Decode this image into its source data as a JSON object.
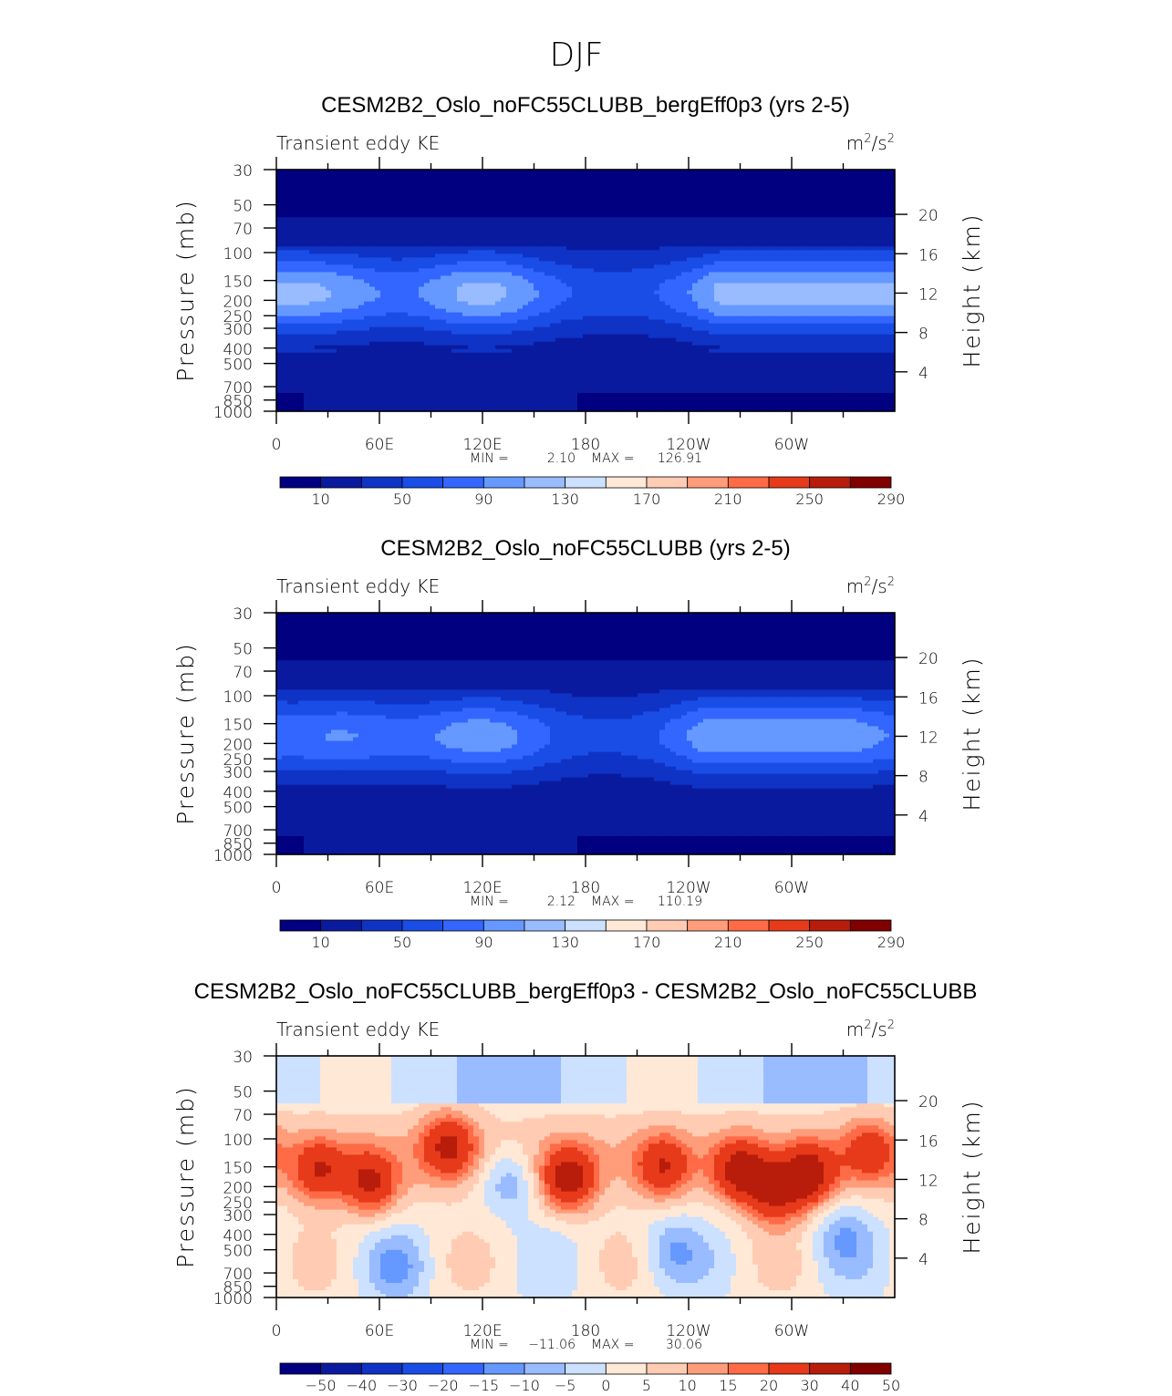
{
  "figure": {
    "title": "DJF",
    "colors": {
      "abs_scale": [
        "#000080",
        "#0a1a9e",
        "#0f33c4",
        "#1a4de6",
        "#3366ff",
        "#6699ff",
        "#99bbff",
        "#cce0ff",
        "#ffe8d6",
        "#ffccb3",
        "#ff9c7a",
        "#ff6b47",
        "#e63a1a",
        "#b81c0a",
        "#800000"
      ],
      "diff_scale": [
        "#000080",
        "#0a1a9e",
        "#0f33c4",
        "#1a4de6",
        "#3366ff",
        "#6699ff",
        "#99bbff",
        "#cce0ff",
        "#ffe8d6",
        "#ffccb3",
        "#ff9c7a",
        "#ff6b47",
        "#e63a1a",
        "#b81c0a",
        "#800000"
      ]
    }
  },
  "chart_data": [
    {
      "type": "heatmap",
      "title": "CESM2B2_Oslo_noFC55CLUBB_bergEff0p3 (yrs 2-5)",
      "subtitle_left": "Transient eddy KE",
      "units_base": "m",
      "units_exp": "2",
      "units_mid": "/s",
      "units_exp2": "2",
      "ylabel": "Pressure (mb)",
      "ylabel_right": "Height (km)",
      "x_ticks": [
        "0",
        "60E",
        "120E",
        "180",
        "120W",
        "60W"
      ],
      "y_ticks": [
        "30",
        "50",
        "70",
        "100",
        "150",
        "200",
        "250",
        "300",
        "400",
        "500",
        "700",
        "850",
        "1000"
      ],
      "y_ticks_right": [
        "20",
        "16",
        "12",
        "8",
        "4"
      ],
      "min_label": "MIN =",
      "min_value": "2.10",
      "max_label": "MAX =",
      "max_value": "126.91",
      "colorbar_labels": [
        "10",
        "50",
        "90",
        "130",
        "170",
        "210",
        "250",
        "290"
      ],
      "jet": {
        "base": 12,
        "peak": 126.91,
        "low_base": 2.1,
        "lon_peaks": [
          30,
          120,
          270,
          300,
          340
        ],
        "pressure_core_mb": 180
      }
    },
    {
      "type": "heatmap",
      "title": "CESM2B2_Oslo_noFC55CLUBB (yrs 2-5)",
      "subtitle_left": "Transient eddy KE",
      "units_base": "m",
      "units_exp": "2",
      "units_mid": "/s",
      "units_exp2": "2",
      "ylabel": "Pressure (mb)",
      "ylabel_right": "Height (km)",
      "x_ticks": [
        "0",
        "60E",
        "120E",
        "180",
        "120W",
        "60W"
      ],
      "y_ticks": [
        "30",
        "50",
        "70",
        "100",
        "150",
        "200",
        "250",
        "300",
        "400",
        "500",
        "700",
        "850",
        "1000"
      ],
      "y_ticks_right": [
        "20",
        "16",
        "12",
        "8",
        "4"
      ],
      "min_label": "MIN =",
      "min_value": "2.12",
      "max_label": "MAX =",
      "max_value": "110.19",
      "colorbar_labels": [
        "10",
        "50",
        "90",
        "130",
        "170",
        "210",
        "250",
        "290"
      ],
      "jet": {
        "base": 12,
        "peak": 110.19,
        "low_base": 2.12,
        "lon_peaks": [
          40,
          120,
          260,
          290,
          330
        ],
        "pressure_core_mb": 180
      }
    },
    {
      "type": "heatmap",
      "title": "CESM2B2_Oslo_noFC55CLUBB_bergEff0p3 - CESM2B2_Oslo_noFC55CLUBB",
      "subtitle_left": "Transient eddy KE",
      "units_base": "m",
      "units_exp": "2",
      "units_mid": "/s",
      "units_exp2": "2",
      "ylabel": "Pressure (mb)",
      "ylabel_right": "Height (km)",
      "x_ticks": [
        "0",
        "60E",
        "120E",
        "180",
        "120W",
        "60W"
      ],
      "y_ticks": [
        "30",
        "50",
        "70",
        "100",
        "150",
        "200",
        "250",
        "300",
        "400",
        "500",
        "700",
        "850",
        "1000"
      ],
      "y_ticks_right": [
        "20",
        "16",
        "12",
        "8",
        "4"
      ],
      "min_label": "MIN =",
      "min_value": "−11.06",
      "max_label": "MAX =",
      "max_value": "30.06",
      "colorbar_labels": [
        "−50",
        "−40",
        "−30",
        "−20",
        "−15",
        "−10",
        "−5",
        "0",
        "5",
        "10",
        "15",
        "20",
        "30",
        "40",
        "50"
      ],
      "diff": {
        "max": 30.06,
        "min": -11.06,
        "pos_lons": [
          25,
          55,
          100,
          170,
          225,
          270,
          290,
          310,
          345
        ],
        "neg_lons": [
          135,
          230,
          330,
          70
        ]
      }
    }
  ]
}
